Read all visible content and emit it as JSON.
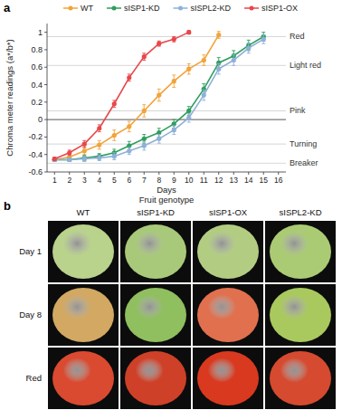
{
  "chart_data": {
    "type": "line",
    "panel_label": "a",
    "x_label": "Days",
    "y_label": "Chroma meter readings (a*/b*)",
    "caption": "Fruit genotype",
    "x": [
      1,
      2,
      3,
      4,
      5,
      6,
      7,
      8,
      9,
      10,
      11,
      12,
      13,
      14,
      15
    ],
    "xlim": [
      0.5,
      16.5
    ],
    "xticks": [
      1,
      2,
      3,
      4,
      5,
      6,
      7,
      8,
      9,
      10,
      11,
      12,
      13,
      14,
      15,
      16
    ],
    "ylim": [
      -0.6,
      1.1
    ],
    "yticks": [
      -0.6,
      -0.4,
      -0.2,
      0,
      0.2,
      0.4,
      0.6,
      0.8,
      1.0
    ],
    "grid": false,
    "legend": "top",
    "marker": "circle",
    "series": [
      {
        "name": "WT",
        "color": "#f2a33a",
        "values": [
          -0.46,
          -0.43,
          -0.36,
          -0.29,
          -0.18,
          -0.08,
          0.1,
          0.28,
          0.44,
          0.58,
          0.68,
          0.97,
          null,
          null,
          null
        ],
        "errors": [
          0.02,
          0.03,
          0.04,
          0.05,
          0.06,
          0.06,
          0.07,
          0.07,
          0.07,
          0.06,
          0.06,
          0.04,
          null,
          null,
          null
        ]
      },
      {
        "name": "sISP1-KD",
        "color": "#2e9e5e",
        "values": [
          -0.46,
          -0.46,
          -0.44,
          -0.42,
          -0.38,
          -0.3,
          -0.22,
          -0.15,
          -0.05,
          0.1,
          0.35,
          0.65,
          0.73,
          0.85,
          0.95
        ],
        "errors": [
          0.02,
          0.02,
          0.03,
          0.03,
          0.04,
          0.05,
          0.05,
          0.05,
          0.05,
          0.05,
          0.06,
          0.06,
          0.06,
          0.06,
          0.05
        ]
      },
      {
        "name": "sISPL2-KD",
        "color": "#8fb0d8",
        "values": [
          -0.46,
          -0.46,
          -0.45,
          -0.44,
          -0.42,
          -0.36,
          -0.3,
          -0.22,
          -0.12,
          0.02,
          0.28,
          0.58,
          0.68,
          0.82,
          0.92
        ],
        "errors": [
          0.02,
          0.02,
          0.03,
          0.03,
          0.04,
          0.04,
          0.05,
          0.05,
          0.05,
          0.05,
          0.06,
          0.06,
          0.06,
          0.06,
          0.05
        ]
      },
      {
        "name": "sISP1-OX",
        "color": "#e8474a",
        "values": [
          -0.45,
          -0.38,
          -0.28,
          -0.1,
          0.18,
          0.48,
          0.72,
          0.87,
          0.92,
          1.0,
          null,
          null,
          null,
          null,
          null
        ],
        "errors": [
          0.02,
          0.03,
          0.04,
          0.04,
          0.04,
          0.04,
          0.04,
          0.03,
          0.03,
          0.02,
          null,
          null,
          null,
          null,
          null
        ]
      }
    ],
    "annotations": [
      {
        "text": "Red",
        "y": 0.95
      },
      {
        "text": "Light red",
        "y": 0.62
      },
      {
        "text": "Pink",
        "y": 0.1
      },
      {
        "text": "Turning",
        "y": -0.28
      },
      {
        "text": "Breaker",
        "y": -0.5
      }
    ]
  },
  "photo_panel": {
    "panel_label": "b",
    "columns": [
      "WT",
      "sISP1-KD",
      "sISP1-OX",
      "sISPL2-KD"
    ],
    "rows": [
      {
        "label": "Day 1",
        "colors": [
          "#b9d28c",
          "#a9c97a",
          "#b2cd82",
          "#aacb74"
        ]
      },
      {
        "label": "Day 8",
        "colors": [
          "#d2a862",
          "#8fbf5e",
          "#e0704e",
          "#a9c95e"
        ]
      },
      {
        "label": "Red",
        "colors": [
          "#d94a30",
          "#cf4028",
          "#d8391f",
          "#d64a30"
        ]
      }
    ]
  }
}
